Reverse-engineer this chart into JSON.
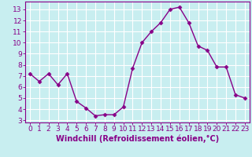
{
  "x": [
    0,
    1,
    2,
    3,
    4,
    5,
    6,
    7,
    8,
    9,
    10,
    11,
    12,
    13,
    14,
    15,
    16,
    17,
    18,
    19,
    20,
    21,
    22,
    23
  ],
  "y": [
    7.2,
    6.5,
    7.2,
    6.2,
    7.2,
    4.7,
    4.1,
    3.4,
    3.5,
    3.5,
    4.2,
    7.7,
    10.0,
    11.0,
    11.8,
    13.0,
    13.2,
    11.8,
    9.7,
    9.3,
    7.8,
    7.8,
    5.3,
    5.0
  ],
  "line_color": "#880088",
  "marker": "D",
  "marker_size": 2.5,
  "bg_color": "#c8eef0",
  "grid_color": "#ffffff",
  "xlabel": "Windchill (Refroidissement éolien,°C)",
  "xlabel_fontsize": 7,
  "ylabel_ticks": [
    3,
    4,
    5,
    6,
    7,
    8,
    9,
    10,
    11,
    12,
    13
  ],
  "xlim": [
    -0.5,
    23.5
  ],
  "ylim": [
    2.8,
    13.7
  ],
  "xtick_labels": [
    "0",
    "1",
    "2",
    "3",
    "4",
    "5",
    "6",
    "7",
    "8",
    "9",
    "10",
    "11",
    "12",
    "13",
    "14",
    "15",
    "16",
    "17",
    "18",
    "19",
    "20",
    "21",
    "22",
    "23"
  ],
  "tick_fontsize": 6.5,
  "tick_color": "#880088",
  "spine_color": "#880088"
}
